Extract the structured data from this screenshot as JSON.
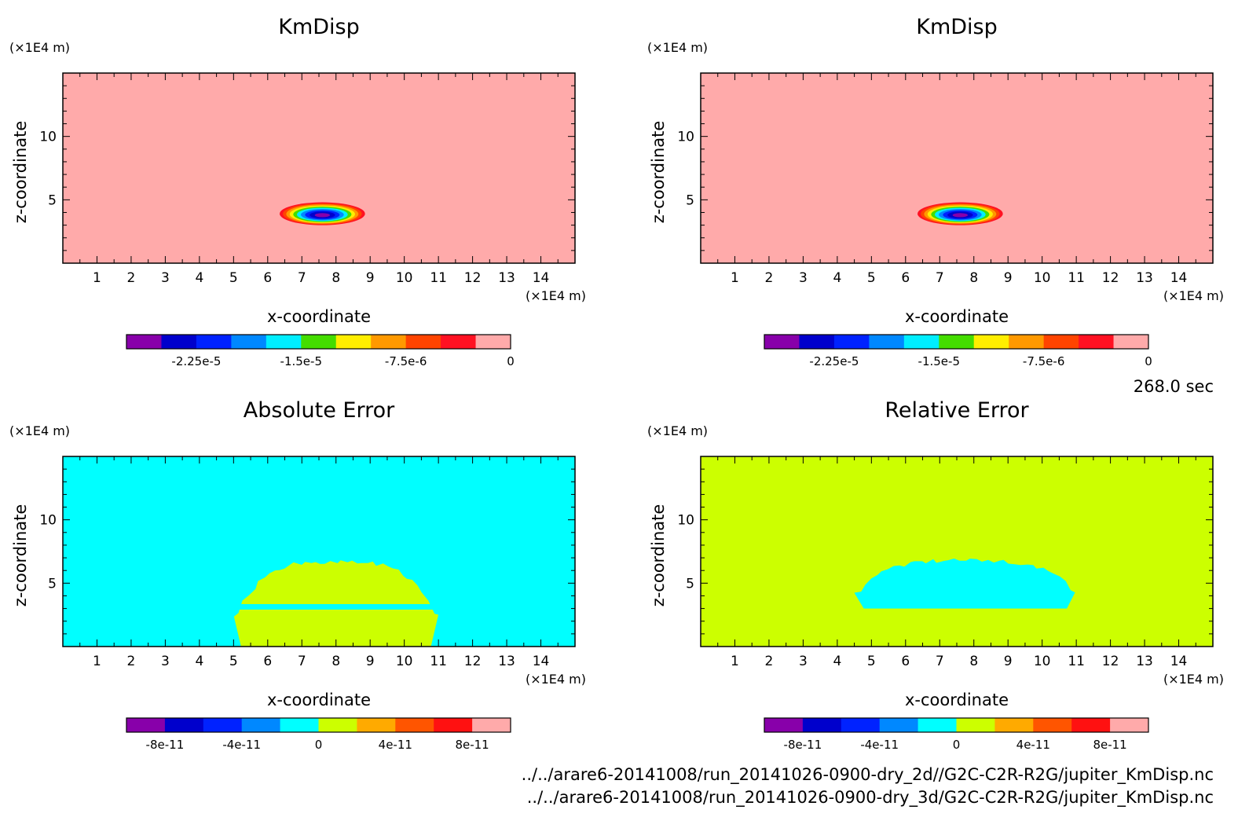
{
  "figure": {
    "time_label": "268.0 sec",
    "files": [
      "../../arare6-20141008/run_20141026-0900-dry_2d//G2C-C2R-R2G/jupiter_KmDisp.nc",
      "../../arare6-20141008/run_20141026-0900-dry_3d/G2C-C2R-R2G/jupiter_KmDisp.nc"
    ]
  },
  "chart_data": [
    {
      "type": "heatmap",
      "title": "KmDisp",
      "xlabel": "x-coordinate",
      "ylabel": "z-coordinate",
      "x_unit": "(×1E4 m)",
      "y_unit": "(×1E4 m)",
      "xlim": [
        0,
        15
      ],
      "ylim": [
        0,
        15
      ],
      "xticks": [
        "1",
        "2",
        "3",
        "4",
        "5",
        "6",
        "7",
        "8",
        "9",
        "10",
        "11",
        "12",
        "13",
        "14"
      ],
      "yticks": [
        "5",
        "10"
      ],
      "background_color": "#ffaaaa",
      "feature": {
        "kind": "blob",
        "center_x": 7.6,
        "center_z": 3.9,
        "half_width_x": 1.25,
        "half_height_z": 0.9,
        "min_value": -2.6e-05
      },
      "colorbar": {
        "colors": [
          "#8800aa",
          "#0000cc",
          "#0022ff",
          "#0088ff",
          "#00eeff",
          "#44dd00",
          "#ffee00",
          "#ff9900",
          "#ff4400",
          "#ff1122",
          "#ffaaaa"
        ],
        "ticks": [
          {
            "label": "-2.25e-5",
            "value": -2.25e-05
          },
          {
            "label": "-1.5e-5",
            "value": -1.5e-05
          },
          {
            "label": "-7.5e-6",
            "value": -7.5e-06
          },
          {
            "label": "0",
            "value": 0
          }
        ],
        "range": [
          -2.75e-05,
          0
        ]
      }
    },
    {
      "type": "heatmap",
      "title": "KmDisp",
      "xlabel": "x-coordinate",
      "ylabel": "z-coordinate",
      "x_unit": "(×1E4 m)",
      "y_unit": "(×1E4 m)",
      "xlim": [
        0,
        15
      ],
      "ylim": [
        0,
        15
      ],
      "xticks": [
        "1",
        "2",
        "3",
        "4",
        "5",
        "6",
        "7",
        "8",
        "9",
        "10",
        "11",
        "12",
        "13",
        "14"
      ],
      "yticks": [
        "5",
        "10"
      ],
      "background_color": "#ffaaaa",
      "feature": {
        "kind": "blob",
        "center_x": 7.6,
        "center_z": 3.9,
        "half_width_x": 1.25,
        "half_height_z": 0.9,
        "min_value": -2.6e-05
      },
      "colorbar": {
        "colors": [
          "#8800aa",
          "#0000cc",
          "#0022ff",
          "#0088ff",
          "#00eeff",
          "#44dd00",
          "#ffee00",
          "#ff9900",
          "#ff4400",
          "#ff1122",
          "#ffaaaa"
        ],
        "ticks": [
          {
            "label": "-2.25e-5",
            "value": -2.25e-05
          },
          {
            "label": "-1.5e-5",
            "value": -1.5e-05
          },
          {
            "label": "-7.5e-6",
            "value": -7.5e-06
          },
          {
            "label": "0",
            "value": 0
          }
        ],
        "range": [
          -2.75e-05,
          0
        ]
      }
    },
    {
      "type": "heatmap",
      "title": "Absolute Error",
      "xlabel": "x-coordinate",
      "ylabel": "z-coordinate",
      "x_unit": "(×1E4 m)",
      "y_unit": "(×1E4 m)",
      "xlim": [
        0,
        15
      ],
      "ylim": [
        0,
        15
      ],
      "xticks": [
        "1",
        "2",
        "3",
        "4",
        "5",
        "6",
        "7",
        "8",
        "9",
        "10",
        "11",
        "12",
        "13",
        "14"
      ],
      "yticks": [
        "5",
        "10"
      ],
      "background_color": "#00ffff",
      "feature": {
        "kind": "region",
        "color": "#ccff00",
        "x_left": 5.0,
        "x_right": 11.0,
        "z_top": 6.7,
        "z_bottom": 0.0
      },
      "colorbar": {
        "colors": [
          "#8800aa",
          "#0000cc",
          "#0022ff",
          "#0088ff",
          "#00ffff",
          "#ccff00",
          "#ffaa00",
          "#ff5500",
          "#ff1111",
          "#ffaaaa"
        ],
        "ticks": [
          {
            "label": "-8e-11",
            "value": -8e-11
          },
          {
            "label": "-4e-11",
            "value": -4e-11
          },
          {
            "label": "0",
            "value": 0
          },
          {
            "label": "4e-11",
            "value": 4e-11
          },
          {
            "label": "8e-11",
            "value": 8e-11
          }
        ],
        "range": [
          -1e-10,
          1e-10
        ]
      }
    },
    {
      "type": "heatmap",
      "title": "Relative Error",
      "xlabel": "x-coordinate",
      "ylabel": "z-coordinate",
      "x_unit": "(×1E4 m)",
      "y_unit": "(×1E4 m)",
      "xlim": [
        0,
        15
      ],
      "ylim": [
        0,
        15
      ],
      "xticks": [
        "1",
        "2",
        "3",
        "4",
        "5",
        "6",
        "7",
        "8",
        "9",
        "10",
        "11",
        "12",
        "13",
        "14"
      ],
      "yticks": [
        "5",
        "10"
      ],
      "background_color": "#ccff00",
      "feature": {
        "kind": "region",
        "color": "#00ffff",
        "x_left": 4.5,
        "x_right": 11.0,
        "z_top": 6.8,
        "z_bottom": 3.0
      },
      "colorbar": {
        "colors": [
          "#8800aa",
          "#0000cc",
          "#0022ff",
          "#0088ff",
          "#00ffff",
          "#ccff00",
          "#ffaa00",
          "#ff5500",
          "#ff1111",
          "#ffaaaa"
        ],
        "ticks": [
          {
            "label": "-8e-11",
            "value": -8e-11
          },
          {
            "label": "-4e-11",
            "value": -4e-11
          },
          {
            "label": "0",
            "value": 0
          },
          {
            "label": "4e-11",
            "value": 4e-11
          },
          {
            "label": "8e-11",
            "value": 8e-11
          }
        ],
        "range": [
          -1e-10,
          1e-10
        ]
      }
    }
  ]
}
